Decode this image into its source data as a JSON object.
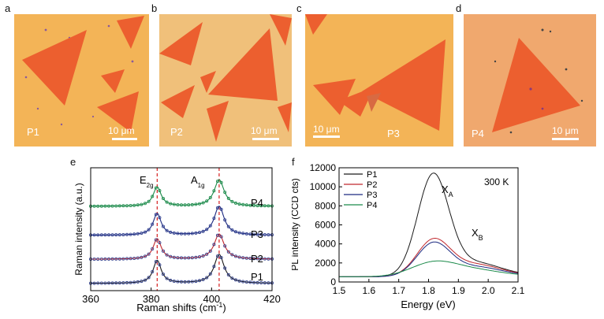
{
  "panels": {
    "a": {
      "letter": "a",
      "label": "P1",
      "scale": "10 μm"
    },
    "b": {
      "letter": "b",
      "label": "P2",
      "scale": "10 μm"
    },
    "c": {
      "letter": "c",
      "label": "P3",
      "scale": "10 μm"
    },
    "d": {
      "letter": "d",
      "label": "P4",
      "scale": "10 μm"
    },
    "e": {
      "letter": "e"
    },
    "f": {
      "letter": "f"
    }
  },
  "colors": {
    "P1": "#1a1a1a",
    "P2": "#c0272d",
    "P3": "#1c2a80",
    "P4": "#1b8a4a",
    "raman_markers": "#2a3a8c",
    "guide": "#d62020",
    "substrate": "#f3b457",
    "flake": "#ec5f2f"
  },
  "chart_data": [
    {
      "type": "line",
      "panel": "e",
      "title": "",
      "xlabel": "Raman shifts (cm",
      "xlabel_sup": "-1",
      "xlabel_end": ")",
      "ylabel": "Raman intensity (a.u.)",
      "xlim": [
        360,
        420
      ],
      "xticks": [
        "360",
        "380",
        "400",
        "420"
      ],
      "peaks": {
        "E2g": 382,
        "A1g": 402.5
      },
      "peak_labels": {
        "E": "E",
        "E_sub": "2g",
        "A": "A",
        "A_sub": "1g"
      },
      "series": [
        {
          "name": "P1",
          "offset": 0.0,
          "amp_e": 0.95,
          "amp_a": 1.2
        },
        {
          "name": "P2",
          "offset": 1.0,
          "amp_e": 0.85,
          "amp_a": 1.05
        },
        {
          "name": "P3",
          "offset": 2.0,
          "amp_e": 0.9,
          "amp_a": 1.2
        },
        {
          "name": "P4",
          "offset": 3.2,
          "amp_e": 0.8,
          "amp_a": 1.1
        }
      ]
    },
    {
      "type": "line",
      "panel": "f",
      "title": "",
      "annotation": "300 K",
      "xlabel": "Energy (eV)",
      "ylabel": "PL intensity (CCD cts)",
      "xlim": [
        1.5,
        2.1
      ],
      "ylim": [
        0,
        12000
      ],
      "xticks": [
        "1.5",
        "1.6",
        "1.7",
        "1.8",
        "1.9",
        "2.0",
        "2.1"
      ],
      "yticks": [
        "0",
        "2000",
        "4000",
        "6000",
        "8000",
        "10000",
        "12000"
      ],
      "labels": {
        "XA": "X",
        "XA_sub": "A",
        "XB": "X",
        "XB_sub": "B"
      },
      "legend": [
        "P1",
        "P2",
        "P3",
        "P4"
      ],
      "series": [
        {
          "name": "P1",
          "base": 550,
          "a_amp": 10400,
          "a_w": 0.052,
          "b_amp": 1500,
          "b_w": 0.09
        },
        {
          "name": "P2",
          "base": 550,
          "a_amp": 3600,
          "a_w": 0.055,
          "b_amp": 1300,
          "b_w": 0.09
        },
        {
          "name": "P3",
          "base": 550,
          "a_amp": 3300,
          "a_w": 0.055,
          "b_amp": 1050,
          "b_w": 0.09
        },
        {
          "name": "P4",
          "base": 550,
          "a_amp": 1400,
          "a_w": 0.075,
          "b_amp": 700,
          "b_w": 0.09
        }
      ]
    }
  ]
}
